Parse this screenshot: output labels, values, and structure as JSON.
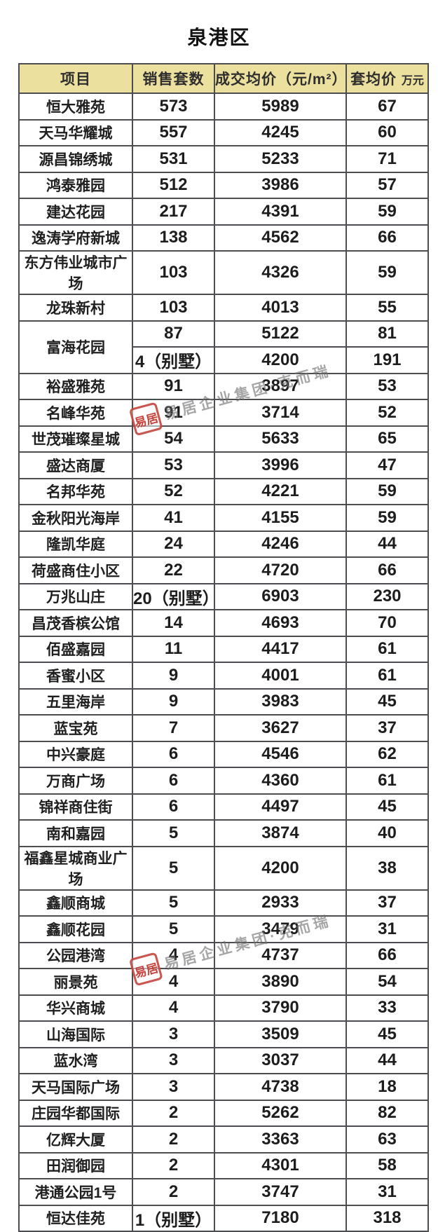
{
  "page": {
    "title": "泉港区"
  },
  "watermark": {
    "seal_text": "易居",
    "text": "易居企业集团·克而瑞"
  },
  "colors": {
    "header_bg": "#ece09f",
    "grid_line": "#4c4d50",
    "seal_red": "#c23932",
    "watermark_gray": "#707070",
    "text_black": "#1c1c1c"
  },
  "chart_data": {
    "type": "table",
    "title": "泉港区",
    "columns": [
      {
        "label": "项目"
      },
      {
        "label": "销售套数"
      },
      {
        "label": "成交均价（元/m²）"
      },
      {
        "label": "套均价",
        "unit": "万元"
      }
    ],
    "rows": [
      {
        "name": "恒大雅苑",
        "units": "573",
        "price": "5989",
        "avg": "67"
      },
      {
        "name": "天马华耀城",
        "units": "557",
        "price": "4245",
        "avg": "60"
      },
      {
        "name": "源昌锦绣城",
        "units": "531",
        "price": "5233",
        "avg": "71"
      },
      {
        "name": "鸿泰雅园",
        "units": "512",
        "price": "3986",
        "avg": "57"
      },
      {
        "name": "建达花园",
        "units": "217",
        "price": "4391",
        "avg": "59"
      },
      {
        "name": "逸涛学府新城",
        "units": "138",
        "price": "4562",
        "avg": "66"
      },
      {
        "name": "东方伟业城市广场",
        "units": "103",
        "price": "4326",
        "avg": "59"
      },
      {
        "name": "龙珠新村",
        "units": "103",
        "price": "4013",
        "avg": "55"
      },
      {
        "name": "富海花园",
        "rowspan": 2,
        "units": "87",
        "price": "5122",
        "avg": "81"
      },
      {
        "merged_with_above": true,
        "units": "4（别墅）",
        "price": "4200",
        "avg": "191"
      },
      {
        "name": "裕盛雅苑",
        "units": "91",
        "price": "3897",
        "avg": "53"
      },
      {
        "name": "名峰华苑",
        "units": "91",
        "price": "3714",
        "avg": "52"
      },
      {
        "name": "世茂璀璨星城",
        "units": "54",
        "price": "5633",
        "avg": "65"
      },
      {
        "name": "盛达商厦",
        "units": "53",
        "price": "3996",
        "avg": "47"
      },
      {
        "name": "名邦华苑",
        "units": "52",
        "price": "4221",
        "avg": "59"
      },
      {
        "name": "金秋阳光海岸",
        "units": "41",
        "price": "4155",
        "avg": "59"
      },
      {
        "name": "隆凯华庭",
        "units": "24",
        "price": "4246",
        "avg": "44"
      },
      {
        "name": "荷盛商住小区",
        "units": "22",
        "price": "4720",
        "avg": "66"
      },
      {
        "name": "万兆山庄",
        "units": "20（别墅）",
        "price": "6903",
        "avg": "230"
      },
      {
        "name": "昌茂香槟公馆",
        "units": "14",
        "price": "4693",
        "avg": "70"
      },
      {
        "name": "佰盛嘉园",
        "units": "11",
        "price": "4417",
        "avg": "61"
      },
      {
        "name": "香蜜小区",
        "units": "9",
        "price": "4001",
        "avg": "61"
      },
      {
        "name": "五里海岸",
        "units": "9",
        "price": "3983",
        "avg": "45"
      },
      {
        "name": "蓝宝苑",
        "units": "7",
        "price": "3627",
        "avg": "37"
      },
      {
        "name": "中兴豪庭",
        "units": "6",
        "price": "4546",
        "avg": "62"
      },
      {
        "name": "万商广场",
        "units": "6",
        "price": "4360",
        "avg": "61"
      },
      {
        "name": "锦祥商住街",
        "units": "6",
        "price": "4497",
        "avg": "45"
      },
      {
        "name": "南和嘉园",
        "units": "5",
        "price": "3874",
        "avg": "40"
      },
      {
        "name": "福鑫星城商业广场",
        "units": "5",
        "price": "4200",
        "avg": "38"
      },
      {
        "name": "鑫顺商城",
        "units": "5",
        "price": "2933",
        "avg": "37"
      },
      {
        "name": "鑫顺花园",
        "units": "5",
        "price": "3479",
        "avg": "31"
      },
      {
        "name": "公园港湾",
        "units": "4",
        "price": "4737",
        "avg": "66"
      },
      {
        "name": "丽景苑",
        "units": "4",
        "price": "3890",
        "avg": "54"
      },
      {
        "name": "华兴商城",
        "units": "4",
        "price": "3790",
        "avg": "33"
      },
      {
        "name": "山海国际",
        "units": "3",
        "price": "3509",
        "avg": "45"
      },
      {
        "name": "蓝水湾",
        "units": "3",
        "price": "3037",
        "avg": "44"
      },
      {
        "name": "天马国际广场",
        "units": "3",
        "price": "4738",
        "avg": "18"
      },
      {
        "name": "庄园华都国际",
        "units": "2",
        "price": "5262",
        "avg": "82"
      },
      {
        "name": "亿辉大厦",
        "units": "2",
        "price": "3363",
        "avg": "63"
      },
      {
        "name": "田润御园",
        "units": "2",
        "price": "4301",
        "avg": "58"
      },
      {
        "name": "港通公园1号",
        "units": "2",
        "price": "3747",
        "avg": "31"
      },
      {
        "name": "恒达佳苑",
        "units": "1（别墅）",
        "price": "7180",
        "avg": "318"
      }
    ]
  }
}
